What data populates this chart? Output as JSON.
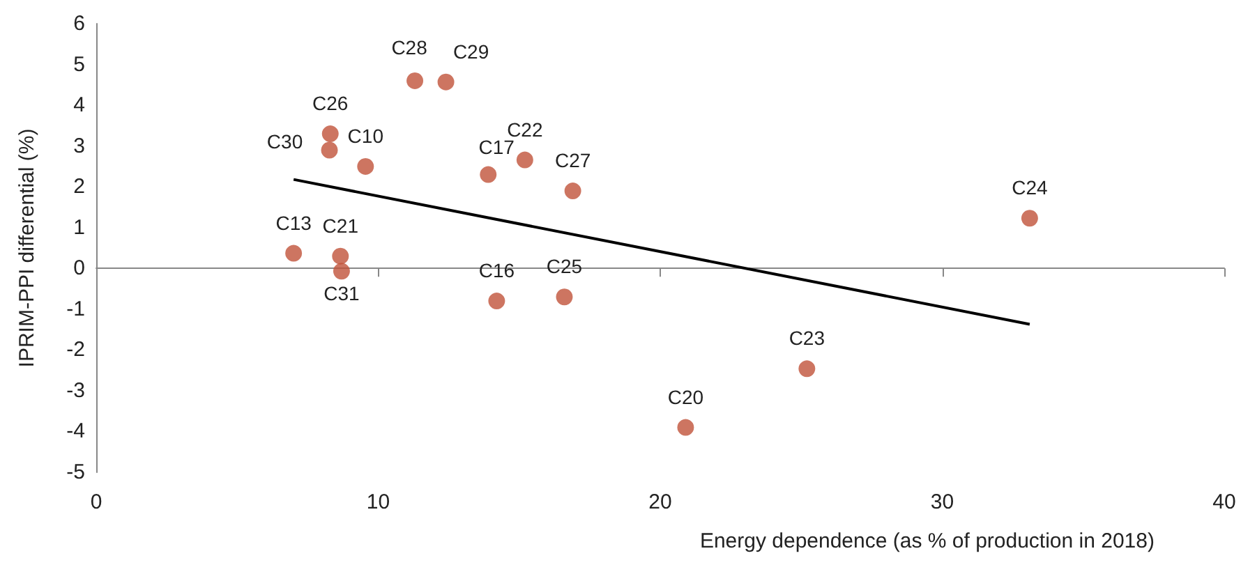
{
  "chart_data": {
    "type": "scatter",
    "xlabel": "Energy dependence (as % of production in 2018)",
    "ylabel": "IPRIM-PPI differential (%)",
    "xlim": [
      0,
      40
    ],
    "xticks": [
      0,
      10,
      20,
      30,
      40
    ],
    "ylim": [
      -5,
      6
    ],
    "yticks": [
      -5,
      -4,
      -3,
      -2,
      -1,
      0,
      1,
      2,
      3,
      4,
      5,
      6
    ],
    "marker": "circle",
    "series": [
      {
        "color": "#c0533a",
        "x": [
          7.0,
          8.66,
          8.7,
          8.27,
          8.3,
          9.55,
          11.3,
          12.4,
          13.9,
          15.2,
          16.9,
          14.2,
          16.6,
          20.9,
          25.2,
          33.1
        ],
        "values": [
          0.37,
          0.3,
          -0.07,
          2.9,
          3.3,
          2.5,
          4.6,
          4.57,
          2.3,
          2.66,
          1.9,
          -0.8,
          -0.7,
          -3.9,
          -2.46,
          1.23
        ]
      },
      {
        "type": "line",
        "color": "#000000",
        "x": [
          7.0,
          33.1
        ],
        "values": [
          2.18,
          -1.37
        ],
        "marker": "none"
      }
    ],
    "annotations": [
      {
        "text": "C13",
        "x": 7.0,
        "y": 0.37
      },
      {
        "text": "C21",
        "x": 8.66,
        "y": 0.3
      },
      {
        "text": "C31",
        "x": 8.7,
        "y": -0.07
      },
      {
        "text": "C30",
        "x": 8.27,
        "y": 2.9
      },
      {
        "text": "C26",
        "x": 8.3,
        "y": 3.3
      },
      {
        "text": "C10",
        "x": 9.55,
        "y": 2.5
      },
      {
        "text": "C28",
        "x": 11.3,
        "y": 4.6
      },
      {
        "text": "C29",
        "x": 12.4,
        "y": 4.57
      },
      {
        "text": "C17",
        "x": 13.9,
        "y": 2.3
      },
      {
        "text": "C22",
        "x": 15.2,
        "y": 2.66
      },
      {
        "text": "C27",
        "x": 16.9,
        "y": 1.9
      },
      {
        "text": "C16",
        "x": 14.2,
        "y": -0.8
      },
      {
        "text": "C25",
        "x": 16.6,
        "y": -0.7
      },
      {
        "text": "C20",
        "x": 20.9,
        "y": -3.9
      },
      {
        "text": "C23",
        "x": 25.2,
        "y": -2.46
      },
      {
        "text": "C24",
        "x": 33.1,
        "y": 1.23
      }
    ]
  }
}
